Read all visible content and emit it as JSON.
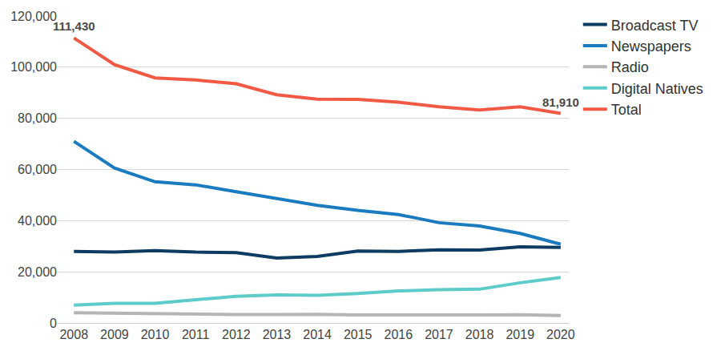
{
  "chart_data": {
    "type": "line",
    "x": [
      2008,
      2009,
      2010,
      2011,
      2012,
      2013,
      2014,
      2015,
      2016,
      2017,
      2018,
      2019,
      2020
    ],
    "series": [
      {
        "name": "Broadcast TV",
        "color": "#0d3b61",
        "values": [
          28000,
          27700,
          28300,
          27700,
          27500,
          25400,
          26000,
          28100,
          28000,
          28600,
          28500,
          29800,
          29500
        ]
      },
      {
        "name": "Newspapers",
        "color": "#1a7bbf",
        "values": [
          71000,
          60600,
          55200,
          54000,
          51300,
          48700,
          46000,
          44000,
          42400,
          39200,
          37900,
          35000,
          30800
        ]
      },
      {
        "name": "Radio",
        "color": "#b5b5b5",
        "values": [
          4000,
          3800,
          3600,
          3200,
          3300,
          3300,
          3400,
          3100,
          3000,
          3000,
          3100,
          3200,
          2900
        ]
      },
      {
        "name": "Digital Natives",
        "color": "#5ecbcb",
        "values": [
          7000,
          7700,
          7700,
          9200,
          10400,
          11000,
          10800,
          11500,
          12500,
          13000,
          13200,
          15700,
          17800
        ]
      },
      {
        "name": "Total",
        "color": "#f05a45",
        "values": [
          111430,
          101000,
          95800,
          95000,
          93500,
          89200,
          87500,
          87400,
          86300,
          84500,
          83300,
          84500,
          81910
        ]
      }
    ],
    "annotations": [
      {
        "x": 2008,
        "y": 111430,
        "text": "111,430"
      },
      {
        "x": 2020,
        "y": 81910,
        "text": "81,910"
      }
    ],
    "xlim": [
      2007.6,
      2020.2
    ],
    "xticks": [
      2008,
      2009,
      2010,
      2011,
      2012,
      2013,
      2014,
      2015,
      2016,
      2017,
      2018,
      2019,
      2020
    ],
    "ylim": [
      0,
      120000
    ],
    "yticks": [
      0,
      {
        "value": 20000,
        "label": "20,000"
      },
      {
        "value": 40000,
        "label": "40,000"
      },
      {
        "value": 60000,
        "label": "60,000"
      },
      {
        "value": 80000,
        "label": "80,000"
      },
      {
        "value": 100000,
        "label": "100,000"
      },
      {
        "value": 120000,
        "label": "120,000"
      }
    ],
    "grid": true,
    "legend": "right"
  }
}
